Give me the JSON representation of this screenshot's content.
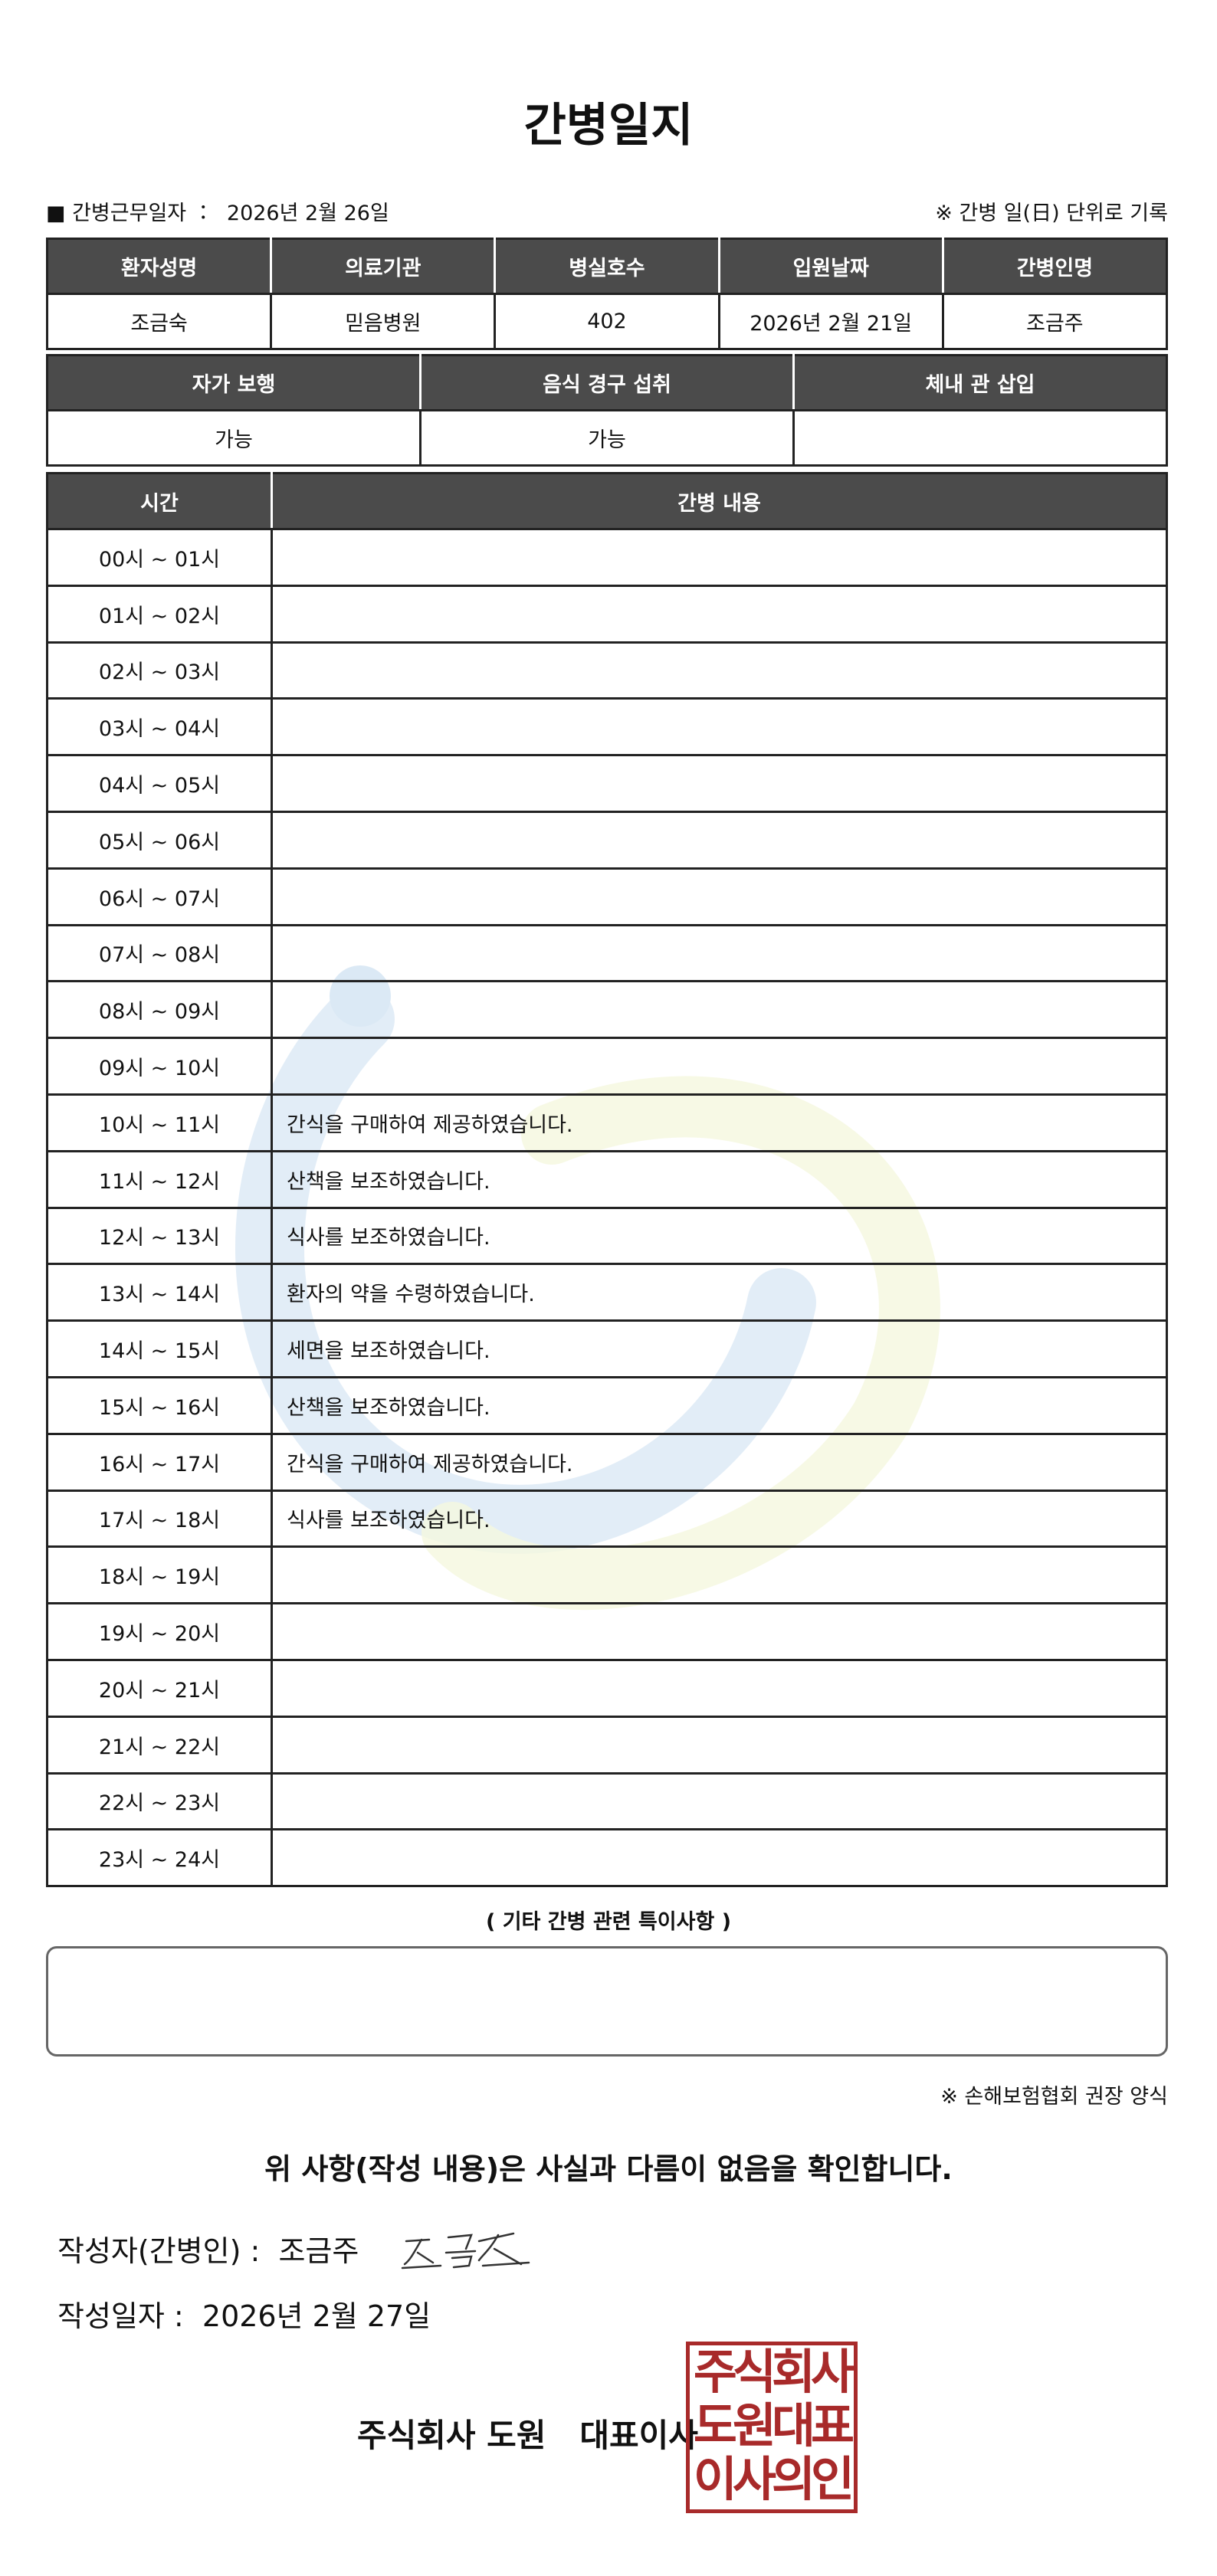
{
  "header": {
    "title": "간병일지"
  },
  "info": {
    "work_date_label": "■ 간병근무일자 ：",
    "work_date": "2026년 2월 26일",
    "note": "※ 간병 일(日) 단위로 기록"
  },
  "table1": {
    "headers": [
      "환자성명",
      "의료기관",
      "병실호수",
      "입원날짜",
      "간병인명"
    ],
    "row": [
      "조금숙",
      "믿음병원",
      "402",
      "2026년 2월 21일",
      "조금주"
    ]
  },
  "table2": {
    "headers": [
      "자가 보행",
      "음식 경구 섭취",
      "체내 관 삽입"
    ],
    "row": [
      "가능",
      "가능"
    ]
  },
  "log": {
    "headers": [
      "시간",
      "간병 내용"
    ],
    "rows": [
      {
        "time": "00시 ~ 01시"
      },
      {
        "time": "01시 ~ 02시"
      },
      {
        "time": "02시 ~ 03시"
      },
      {
        "time": "03시 ~ 04시"
      },
      {
        "time": "04시 ~ 05시"
      },
      {
        "time": "05시 ~ 06시"
      },
      {
        "time": "06시 ~ 07시"
      },
      {
        "time": "07시 ~ 08시"
      },
      {
        "time": "08시 ~ 09시"
      },
      {
        "time": "09시 ~ 10시"
      },
      {
        "time": "10시 ~ 11시",
        "content": "간식을 구매하여 제공하였습니다."
      },
      {
        "time": "11시 ~ 12시",
        "content": "산책을 보조하였습니다."
      },
      {
        "time": "12시 ~ 13시",
        "content": "식사를 보조하였습니다."
      },
      {
        "time": "13시 ~ 14시",
        "content": "환자의 약을 수령하였습니다."
      },
      {
        "time": "14시 ~ 15시",
        "content": "세면을 보조하였습니다."
      },
      {
        "time": "15시 ~ 16시",
        "content": "산책을 보조하였습니다."
      },
      {
        "time": "16시 ~ 17시",
        "content": "간식을 구매하여 제공하였습니다."
      },
      {
        "time": "17시 ~ 18시",
        "content": "식사를 보조하였습니다."
      },
      {
        "time": "18시 ~ 19시"
      },
      {
        "time": "19시 ~ 20시"
      },
      {
        "time": "20시 ~ 21시"
      },
      {
        "time": "21시 ~ 22시"
      },
      {
        "time": "22시 ~ 23시"
      },
      {
        "time": "23시 ~ 24시"
      }
    ]
  },
  "remarks": {
    "title": "( 기타 간병 관련 특이사항 )"
  },
  "footer": {
    "form_note": "※ 손해보험협회 권장 양식",
    "confirm": "위 사항(작성 내용)은 사실과 다름이 없음을 확인합니다.",
    "writer_label": "작성자(간병인) :",
    "writer": "조금주",
    "date_label": "작성일자 :",
    "date": "2026년 2월 27일",
    "company": "주식회사 도원   대표이사",
    "seal": [
      "주식회사",
      "도원대표",
      "이사의인"
    ]
  }
}
